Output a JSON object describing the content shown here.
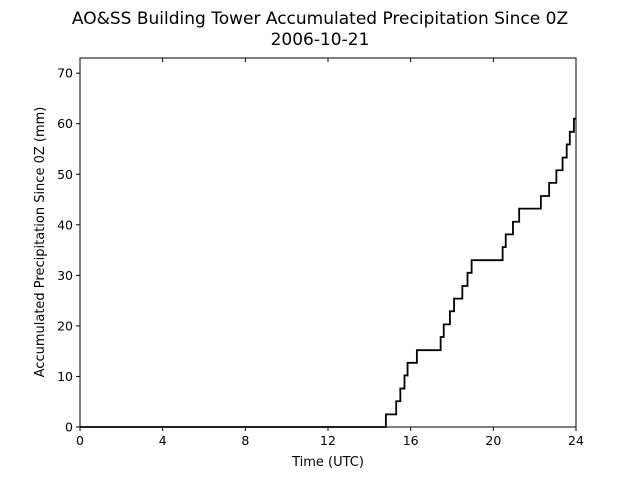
{
  "chart_data": {
    "type": "line",
    "title": "AO&SS Building Tower Accumulated Precipitation Since 0Z",
    "subtitle": "2006-10-21",
    "xlabel": "Time (UTC)",
    "ylabel": "Accumulated Precipitation Since 0Z (mm)",
    "xlim": [
      0,
      24
    ],
    "ylim": [
      0,
      73
    ],
    "xticks": [
      0,
      4,
      8,
      12,
      16,
      20,
      24
    ],
    "yticks": [
      0,
      10,
      20,
      30,
      40,
      50,
      60,
      70
    ],
    "grid": false,
    "legend": "none",
    "line_color": "#000000",
    "step": true,
    "series": [
      {
        "x": [
          0,
          14.8,
          14.8,
          15.3,
          15.3,
          15.5,
          15.5,
          15.7,
          15.7,
          15.85,
          15.85,
          16.3,
          16.3,
          17.45,
          17.45,
          17.6,
          17.6,
          17.9,
          17.9,
          18.1,
          18.1,
          18.5,
          18.5,
          18.75,
          18.75,
          18.95,
          18.95,
          20.45,
          20.45,
          20.6,
          20.6,
          20.95,
          20.95,
          21.25,
          21.25,
          22.3,
          22.3,
          22.7,
          22.7,
          23.05,
          23.05,
          23.35,
          23.35,
          23.55,
          23.55,
          23.7,
          23.7,
          23.9,
          23.9,
          24.0
        ],
        "y": [
          0,
          0,
          2.5,
          2.5,
          5.1,
          5.1,
          7.6,
          7.6,
          10.2,
          10.2,
          12.7,
          12.7,
          15.2,
          15.2,
          17.8,
          17.8,
          20.3,
          20.3,
          22.9,
          22.9,
          25.4,
          25.4,
          27.9,
          27.9,
          30.5,
          30.5,
          33.0,
          33.0,
          35.6,
          35.6,
          38.1,
          38.1,
          40.6,
          40.6,
          43.2,
          43.2,
          45.7,
          45.7,
          48.3,
          48.3,
          50.8,
          50.8,
          53.3,
          53.3,
          55.9,
          55.9,
          58.4,
          58.4,
          61.0,
          61.0
        ]
      }
    ]
  }
}
